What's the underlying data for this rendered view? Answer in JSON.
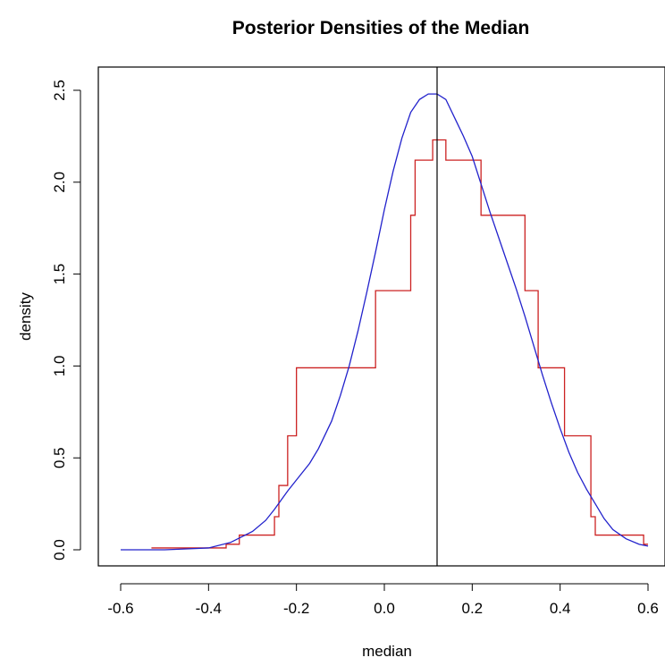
{
  "chart_data": {
    "type": "line",
    "title": "Posterior Densities of the Median",
    "xlabel": "median",
    "ylabel": "density",
    "xlim": [
      -0.6,
      0.6
    ],
    "ylim": [
      0,
      2.5
    ],
    "x_ticks": [
      -0.6,
      -0.4,
      -0.2,
      0.0,
      0.2,
      0.4,
      0.6
    ],
    "x_tick_labels": [
      "-0.6",
      "-0.4",
      "-0.2",
      "0.0",
      "0.2",
      "0.4",
      "0.6"
    ],
    "y_ticks": [
      0.0,
      0.5,
      1.0,
      1.5,
      2.0,
      2.5
    ],
    "y_tick_labels": [
      "0.0",
      "0.5",
      "1.0",
      "1.5",
      "2.0",
      "2.5"
    ],
    "grid": false,
    "vertical_line": {
      "x": 0.12,
      "color": "#000000"
    },
    "series": [
      {
        "kind": "step",
        "color": "#cc2222",
        "x": [
          -0.53,
          -0.4,
          -0.36,
          -0.33,
          -0.32,
          -0.31,
          -0.3,
          -0.29,
          -0.27,
          -0.25,
          -0.24,
          -0.23,
          -0.22,
          -0.2,
          -0.18,
          -0.16,
          -0.14,
          -0.12,
          -0.1,
          -0.08,
          -0.06,
          -0.04,
          -0.02,
          0.02,
          0.04,
          0.06,
          0.07,
          0.08,
          0.1,
          0.11,
          0.12,
          0.14,
          0.16,
          0.18,
          0.21,
          0.22,
          0.24,
          0.26,
          0.28,
          0.3,
          0.32,
          0.35,
          0.36,
          0.38,
          0.4,
          0.41,
          0.44,
          0.47,
          0.48,
          0.5,
          0.52,
          0.54,
          0.56,
          0.58,
          0.59,
          0.6
        ],
        "y": [
          0.01,
          0.01,
          0.03,
          0.08,
          0.08,
          0.08,
          0.08,
          0.08,
          0.08,
          0.18,
          0.35,
          0.35,
          0.62,
          0.99,
          0.99,
          0.99,
          0.99,
          0.99,
          0.99,
          0.99,
          0.99,
          0.99,
          1.41,
          1.41,
          1.41,
          1.82,
          2.12,
          2.12,
          2.12,
          2.23,
          2.23,
          2.12,
          2.12,
          2.12,
          2.12,
          1.82,
          1.82,
          1.82,
          1.82,
          1.82,
          1.41,
          0.99,
          0.99,
          0.99,
          0.99,
          0.62,
          0.62,
          0.18,
          0.08,
          0.08,
          0.08,
          0.08,
          0.08,
          0.08,
          0.03,
          0.03
        ]
      },
      {
        "kind": "line",
        "color": "#2222cc",
        "x": [
          -0.6,
          -0.5,
          -0.45,
          -0.4,
          -0.35,
          -0.3,
          -0.27,
          -0.25,
          -0.22,
          -0.2,
          -0.17,
          -0.15,
          -0.12,
          -0.1,
          -0.08,
          -0.06,
          -0.04,
          -0.02,
          0.0,
          0.02,
          0.04,
          0.06,
          0.08,
          0.1,
          0.12,
          0.14,
          0.16,
          0.18,
          0.2,
          0.22,
          0.24,
          0.26,
          0.28,
          0.3,
          0.32,
          0.34,
          0.36,
          0.38,
          0.4,
          0.42,
          0.44,
          0.46,
          0.48,
          0.5,
          0.52,
          0.55,
          0.58,
          0.6
        ],
        "y": [
          0.0,
          0.0,
          0.005,
          0.01,
          0.04,
          0.1,
          0.16,
          0.22,
          0.32,
          0.38,
          0.47,
          0.55,
          0.7,
          0.84,
          1.0,
          1.19,
          1.4,
          1.62,
          1.85,
          2.06,
          2.24,
          2.38,
          2.45,
          2.48,
          2.48,
          2.45,
          2.35,
          2.25,
          2.14,
          1.99,
          1.84,
          1.7,
          1.56,
          1.42,
          1.27,
          1.11,
          0.95,
          0.8,
          0.66,
          0.53,
          0.42,
          0.33,
          0.25,
          0.17,
          0.11,
          0.06,
          0.03,
          0.02
        ]
      }
    ]
  }
}
